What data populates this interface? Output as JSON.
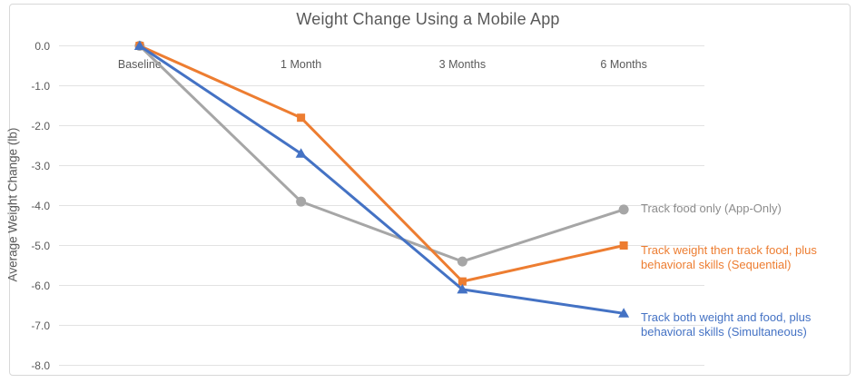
{
  "chart_data": {
    "type": "line",
    "title": "Weight Change Using a Mobile App",
    "ylabel": "Average Weight Change (lb)",
    "xlabel": "",
    "categories": [
      "Baseline",
      "1 Month",
      "3 Months",
      "6 Months"
    ],
    "series": [
      {
        "name": "Track food only (App-Only)",
        "values": [
          0.0,
          -3.9,
          -5.4,
          -4.1
        ],
        "color": "#a6a6a6",
        "label_color": "#8c8c8c",
        "marker": "circle",
        "label_lines": [
          "Track food only (App-Only)"
        ]
      },
      {
        "name": "Track weight then track food, plus behavioral skills (Sequential)",
        "values": [
          0.0,
          -1.8,
          -5.9,
          -5.0
        ],
        "color": "#ed7d31",
        "label_color": "#ed7d31",
        "marker": "square",
        "label_lines": [
          "Track weight then track food, plus",
          "behavioral skills (Sequential)"
        ]
      },
      {
        "name": "Track both weight and food, plus behavioral skills (Simultaneous)",
        "values": [
          0.0,
          -2.7,
          -6.1,
          -6.7
        ],
        "color": "#4472c4",
        "label_color": "#4472c4",
        "marker": "triangle",
        "label_lines": [
          "Track both weight and food, plus",
          "behavioral skills (Simultaneous)"
        ]
      }
    ],
    "ylim": [
      -8.0,
      0.0
    ],
    "y_ticks": [
      "0.0",
      "-1.0",
      "-2.0",
      "-3.0",
      "-4.0",
      "-5.0",
      "-6.0",
      "-7.0",
      "-8.0"
    ],
    "grid": true,
    "gridline_color": "#e2e2e2",
    "text_color": "#595959",
    "legend_position": "right-of-last-point"
  }
}
